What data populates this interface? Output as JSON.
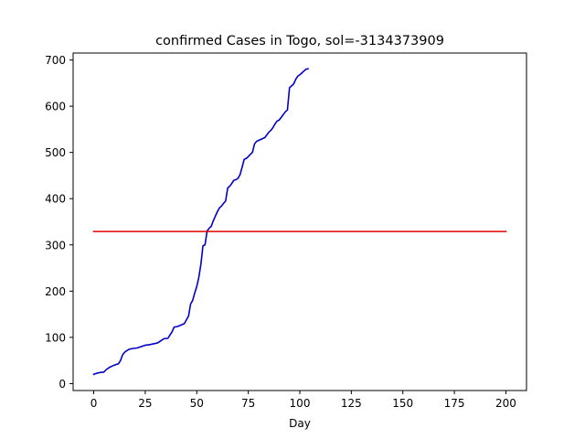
{
  "chart_data": {
    "type": "line",
    "title": "confirmed Cases in Togo, sol=-3134373909",
    "xlabel": "Day",
    "ylabel": "",
    "xlim": [
      -10,
      210
    ],
    "ylim": [
      -15,
      715
    ],
    "xticks": [
      0,
      25,
      50,
      75,
      100,
      125,
      150,
      175,
      200
    ],
    "yticks": [
      0,
      100,
      200,
      300,
      400,
      500,
      600,
      700
    ],
    "grid": false,
    "series": [
      {
        "color": "#0000cc",
        "x": [
          0,
          2,
          3,
          5,
          6,
          8,
          10,
          12,
          13,
          14,
          15,
          17,
          19,
          21,
          23,
          25,
          27,
          29,
          31,
          33,
          34,
          36,
          37,
          38,
          39,
          41,
          43,
          44,
          45,
          46,
          47,
          48,
          49,
          50,
          51,
          52,
          53,
          54,
          55,
          56,
          57,
          58,
          59,
          60,
          61,
          62,
          63,
          64,
          65,
          66,
          67,
          68,
          69,
          70,
          71,
          72,
          73,
          74,
          75,
          76,
          77,
          78,
          79,
          80,
          81,
          82,
          83,
          84,
          85,
          86,
          87,
          88,
          89,
          90,
          91,
          92,
          93,
          94,
          95,
          96,
          97,
          98,
          99,
          100,
          101,
          102,
          103,
          104
        ],
        "y": [
          20,
          23,
          24,
          25,
          30,
          36,
          40,
          43,
          50,
          62,
          68,
          74,
          76,
          77,
          80,
          83,
          84,
          86,
          88,
          94,
          97,
          98,
          105,
          112,
          122,
          124,
          128,
          130,
          138,
          146,
          172,
          180,
          196,
          210,
          230,
          258,
          298,
          300,
          330,
          336,
          340,
          352,
          362,
          372,
          380,
          384,
          390,
          395,
          423,
          427,
          433,
          440,
          441,
          444,
          452,
          468,
          485,
          487,
          491,
          496,
          500,
          518,
          524,
          526,
          528,
          530,
          532,
          538,
          544,
          548,
          554,
          562,
          568,
          570,
          576,
          582,
          588,
          592,
          640,
          644,
          648,
          658,
          665,
          668,
          672,
          676,
          680,
          681
        ]
      },
      {
        "color": "#e00000",
        "x": [
          0,
          200
        ],
        "y": [
          329,
          329
        ]
      }
    ]
  }
}
